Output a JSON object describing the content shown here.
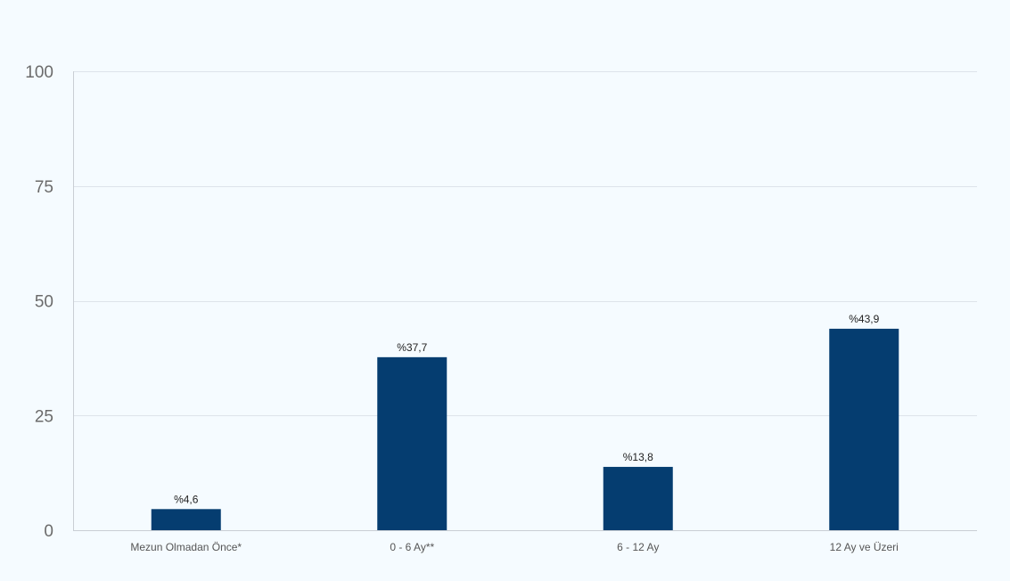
{
  "chart_data": {
    "type": "bar",
    "categories": [
      "Mezun Olmadan Önce*",
      "0 - 6 Ay**",
      "6 - 12 Ay",
      "12 Ay ve Üzeri"
    ],
    "values": [
      4.6,
      37.7,
      13.8,
      43.9
    ],
    "data_labels": [
      "%4,6",
      "%37,7",
      "%13,8",
      "%43,9"
    ],
    "title": "",
    "xlabel": "",
    "ylabel": "",
    "ylim": [
      0,
      100
    ],
    "yticks": [
      0,
      25,
      50,
      75,
      100
    ],
    "grid": true,
    "legend": "none",
    "colors": {
      "bar": "#053d70",
      "grid": "#dde3ea",
      "axis": "#c9ced4",
      "background": "#f5fbff"
    }
  }
}
